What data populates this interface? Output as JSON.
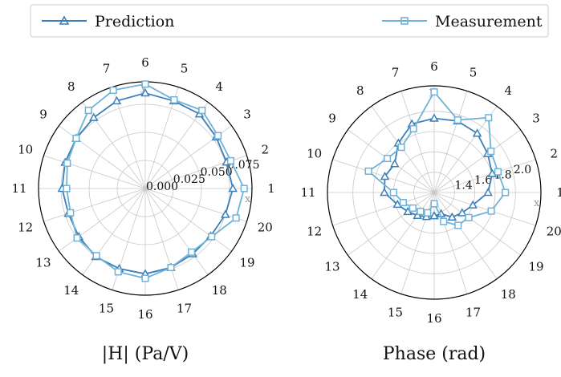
{
  "legend": {
    "prediction_label": "Prediction",
    "measurement_label": "Measurement"
  },
  "colors": {
    "prediction": "#3a7fba",
    "measurement": "#6fb2d8"
  },
  "chart_data": [
    {
      "type": "radar",
      "title": "|H| (Pa/V)",
      "spoke_labels": [
        "1",
        "2",
        "3",
        "4",
        "5",
        "6",
        "7",
        "8",
        "9",
        "10",
        "11",
        "12",
        "13",
        "14",
        "15",
        "16",
        "17",
        "18",
        "19",
        "20"
      ],
      "rlim": [
        0,
        0.095
      ],
      "rticks": [
        0.0,
        0.025,
        0.05,
        0.075
      ],
      "rtick_labels": [
        "0.000",
        "0.025",
        "0.050",
        "0.075"
      ],
      "x_axis_letter": "x",
      "y_axis_letter": "y",
      "series": [
        {
          "name": "Prediction",
          "marker": "triangle",
          "values": [
            0.078,
            0.076,
            0.078,
            0.082,
            0.082,
            0.085,
            0.082,
            0.078,
            0.076,
            0.075,
            0.074,
            0.072,
            0.073,
            0.075,
            0.075,
            0.076,
            0.074,
            0.072,
            0.072,
            0.075
          ]
        },
        {
          "name": "Measurement",
          "marker": "square",
          "values": [
            0.088,
            0.08,
            0.08,
            0.086,
            0.083,
            0.093,
            0.092,
            0.086,
            0.076,
            0.073,
            0.07,
            0.07,
            0.075,
            0.074,
            0.078,
            0.08,
            0.074,
            0.07,
            0.073,
            0.085
          ]
        }
      ]
    },
    {
      "type": "radar",
      "title": "Phase (rad)",
      "spoke_labels": [
        "1",
        "2",
        "3",
        "4",
        "5",
        "6",
        "7",
        "8",
        "9",
        "10",
        "11",
        "12",
        "13",
        "14",
        "15",
        "16",
        "17",
        "18",
        "19",
        "20"
      ],
      "rlim": [
        1.2,
        2.25
      ],
      "rticks": [
        1.4,
        1.6,
        1.8,
        2.0
      ],
      "rtick_labels": [
        "1.4",
        "1.6",
        "1.8",
        "2.0"
      ],
      "x_axis_letter": "x",
      "y_axis_letter": "y",
      "series": [
        {
          "name": "Prediction",
          "marker": "triangle",
          "values": [
            1.73,
            1.8,
            1.85,
            1.92,
            1.94,
            1.93,
            1.91,
            1.8,
            1.68,
            1.71,
            1.69,
            1.58,
            1.52,
            1.48,
            1.45,
            1.43,
            1.42,
            1.5,
            1.54,
            1.6
          ]
        },
        {
          "name": "Measurement",
          "marker": "square",
          "values": [
            1.9,
            1.86,
            1.89,
            2.11,
            1.95,
            2.19,
            1.86,
            1.75,
            1.77,
            1.88,
            1.6,
            1.52,
            1.46,
            1.43,
            1.41,
            1.31,
            1.5,
            1.6,
            1.62,
            1.79
          ]
        }
      ]
    }
  ]
}
